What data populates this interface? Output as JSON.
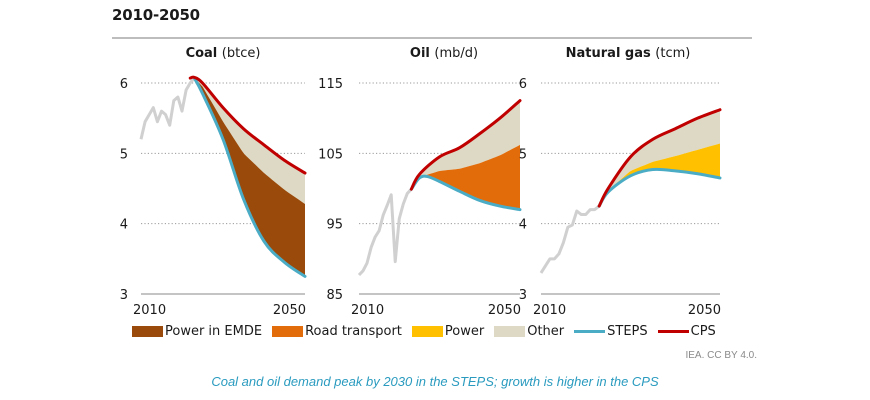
{
  "figure": {
    "title_partial": "…, 2010-2050",
    "title_line2": "2010-2050",
    "credit": "IEA. CC BY 4.0.",
    "caption": "Coal and oil demand peak by 2030 in the STEPS; growth is higher in the CPS"
  },
  "legend": [
    {
      "label": "Power in EMDE",
      "kind": "area",
      "color": "#9a4a0a"
    },
    {
      "label": "Road transport",
      "kind": "area",
      "color": "#e36c0a"
    },
    {
      "label": "Power",
      "kind": "area",
      "color": "#ffc000"
    },
    {
      "label": "Other",
      "kind": "area",
      "color": "#ddd9c4"
    },
    {
      "label": "STEPS",
      "kind": "line",
      "color": "#4bacc6"
    },
    {
      "label": "CPS",
      "kind": "line",
      "color": "#c00000"
    }
  ],
  "chart_data": [
    {
      "type": "area",
      "title_bold": "Coal",
      "title_unit": "(btce)",
      "xlim": [
        2010,
        2050
      ],
      "ylim": [
        3,
        6
      ],
      "yticks": [
        3,
        4,
        5,
        6
      ],
      "xticks": [
        "2010",
        "2050"
      ],
      "grid": true,
      "historical": {
        "x": [
          2010,
          2011,
          2012,
          2013,
          2014,
          2015,
          2016,
          2017,
          2018,
          2019,
          2020,
          2021,
          2022,
          2023
        ],
        "y": [
          5.2,
          5.45,
          5.55,
          5.65,
          5.45,
          5.6,
          5.55,
          5.4,
          5.75,
          5.8,
          5.6,
          5.9,
          6.0,
          6.07
        ]
      },
      "steps": {
        "x": [
          2023,
          2025,
          2030,
          2035,
          2040,
          2045,
          2050
        ],
        "y": [
          6.07,
          5.85,
          5.2,
          4.35,
          3.75,
          3.45,
          3.25
        ]
      },
      "cps": {
        "x": [
          2022,
          2023,
          2025,
          2030,
          2035,
          2040,
          2045,
          2050
        ],
        "y": [
          6.07,
          6.08,
          6.0,
          5.65,
          5.35,
          5.12,
          4.9,
          4.72
        ]
      },
      "stack_top_primary": {
        "name": "Power in EMDE",
        "x": [
          2023,
          2025,
          2030,
          2035,
          2040,
          2045,
          2050
        ],
        "y": [
          6.07,
          5.95,
          5.45,
          5.0,
          4.72,
          4.48,
          4.28
        ]
      }
    },
    {
      "type": "area",
      "title_bold": "Oil",
      "title_unit": "(mb/d)",
      "xlim": [
        2010,
        2050
      ],
      "ylim": [
        85,
        115
      ],
      "yticks": [
        85,
        95,
        105,
        115
      ],
      "xticks": [
        "2010",
        "2050"
      ],
      "grid": true,
      "historical": {
        "x": [
          2010,
          2011,
          2012,
          2013,
          2014,
          2015,
          2016,
          2017,
          2018,
          2019,
          2020,
          2021,
          2022,
          2023
        ],
        "y": [
          87.7,
          88.3,
          89.4,
          91.6,
          93.1,
          94.0,
          96.2,
          97.6,
          99.1,
          89.6,
          95.7,
          97.8,
          99.3,
          99.9
        ]
      },
      "steps": {
        "x": [
          2023,
          2025,
          2027,
          2030,
          2035,
          2040,
          2045,
          2050
        ],
        "y": [
          99.9,
          101.5,
          101.7,
          101.0,
          99.6,
          98.3,
          97.5,
          97.0
        ]
      },
      "cps": {
        "x": [
          2023,
          2025,
          2030,
          2035,
          2040,
          2045,
          2050
        ],
        "y": [
          99.9,
          102.0,
          104.5,
          105.8,
          107.8,
          110.0,
          112.5
        ]
      },
      "stack_top_primary": {
        "name": "Road transport",
        "x": [
          2023,
          2025,
          2030,
          2035,
          2040,
          2045,
          2050
        ],
        "y": [
          99.9,
          101.6,
          102.5,
          102.8,
          103.6,
          104.7,
          106.2
        ]
      }
    },
    {
      "type": "area",
      "title_bold": "Natural gas",
      "title_unit": "(tcm)",
      "xlim": [
        2010,
        2050
      ],
      "ylim": [
        3,
        6
      ],
      "yticks": [
        3,
        4,
        5,
        6
      ],
      "xticks": [
        "2010",
        "2050"
      ],
      "grid": true,
      "historical": {
        "x": [
          2010,
          2011,
          2012,
          2013,
          2014,
          2015,
          2016,
          2017,
          2018,
          2019,
          2020,
          2021,
          2022,
          2023
        ],
        "y": [
          3.3,
          3.4,
          3.5,
          3.5,
          3.57,
          3.73,
          3.95,
          3.98,
          4.18,
          4.13,
          4.13,
          4.2,
          4.2,
          4.25
        ]
      },
      "steps": {
        "x": [
          2023,
          2025,
          2030,
          2035,
          2040,
          2045,
          2050
        ],
        "y": [
          4.25,
          4.45,
          4.68,
          4.77,
          4.75,
          4.71,
          4.65
        ]
      },
      "cps": {
        "x": [
          2023,
          2025,
          2030,
          2035,
          2040,
          2045,
          2050
        ],
        "y": [
          4.25,
          4.5,
          4.95,
          5.2,
          5.35,
          5.5,
          5.62
        ]
      },
      "stack_top_primary": {
        "name": "Power",
        "x": [
          2023,
          2025,
          2030,
          2035,
          2040,
          2045,
          2050
        ],
        "y": [
          4.25,
          4.47,
          4.75,
          4.88,
          4.96,
          5.05,
          5.14
        ]
      }
    }
  ]
}
